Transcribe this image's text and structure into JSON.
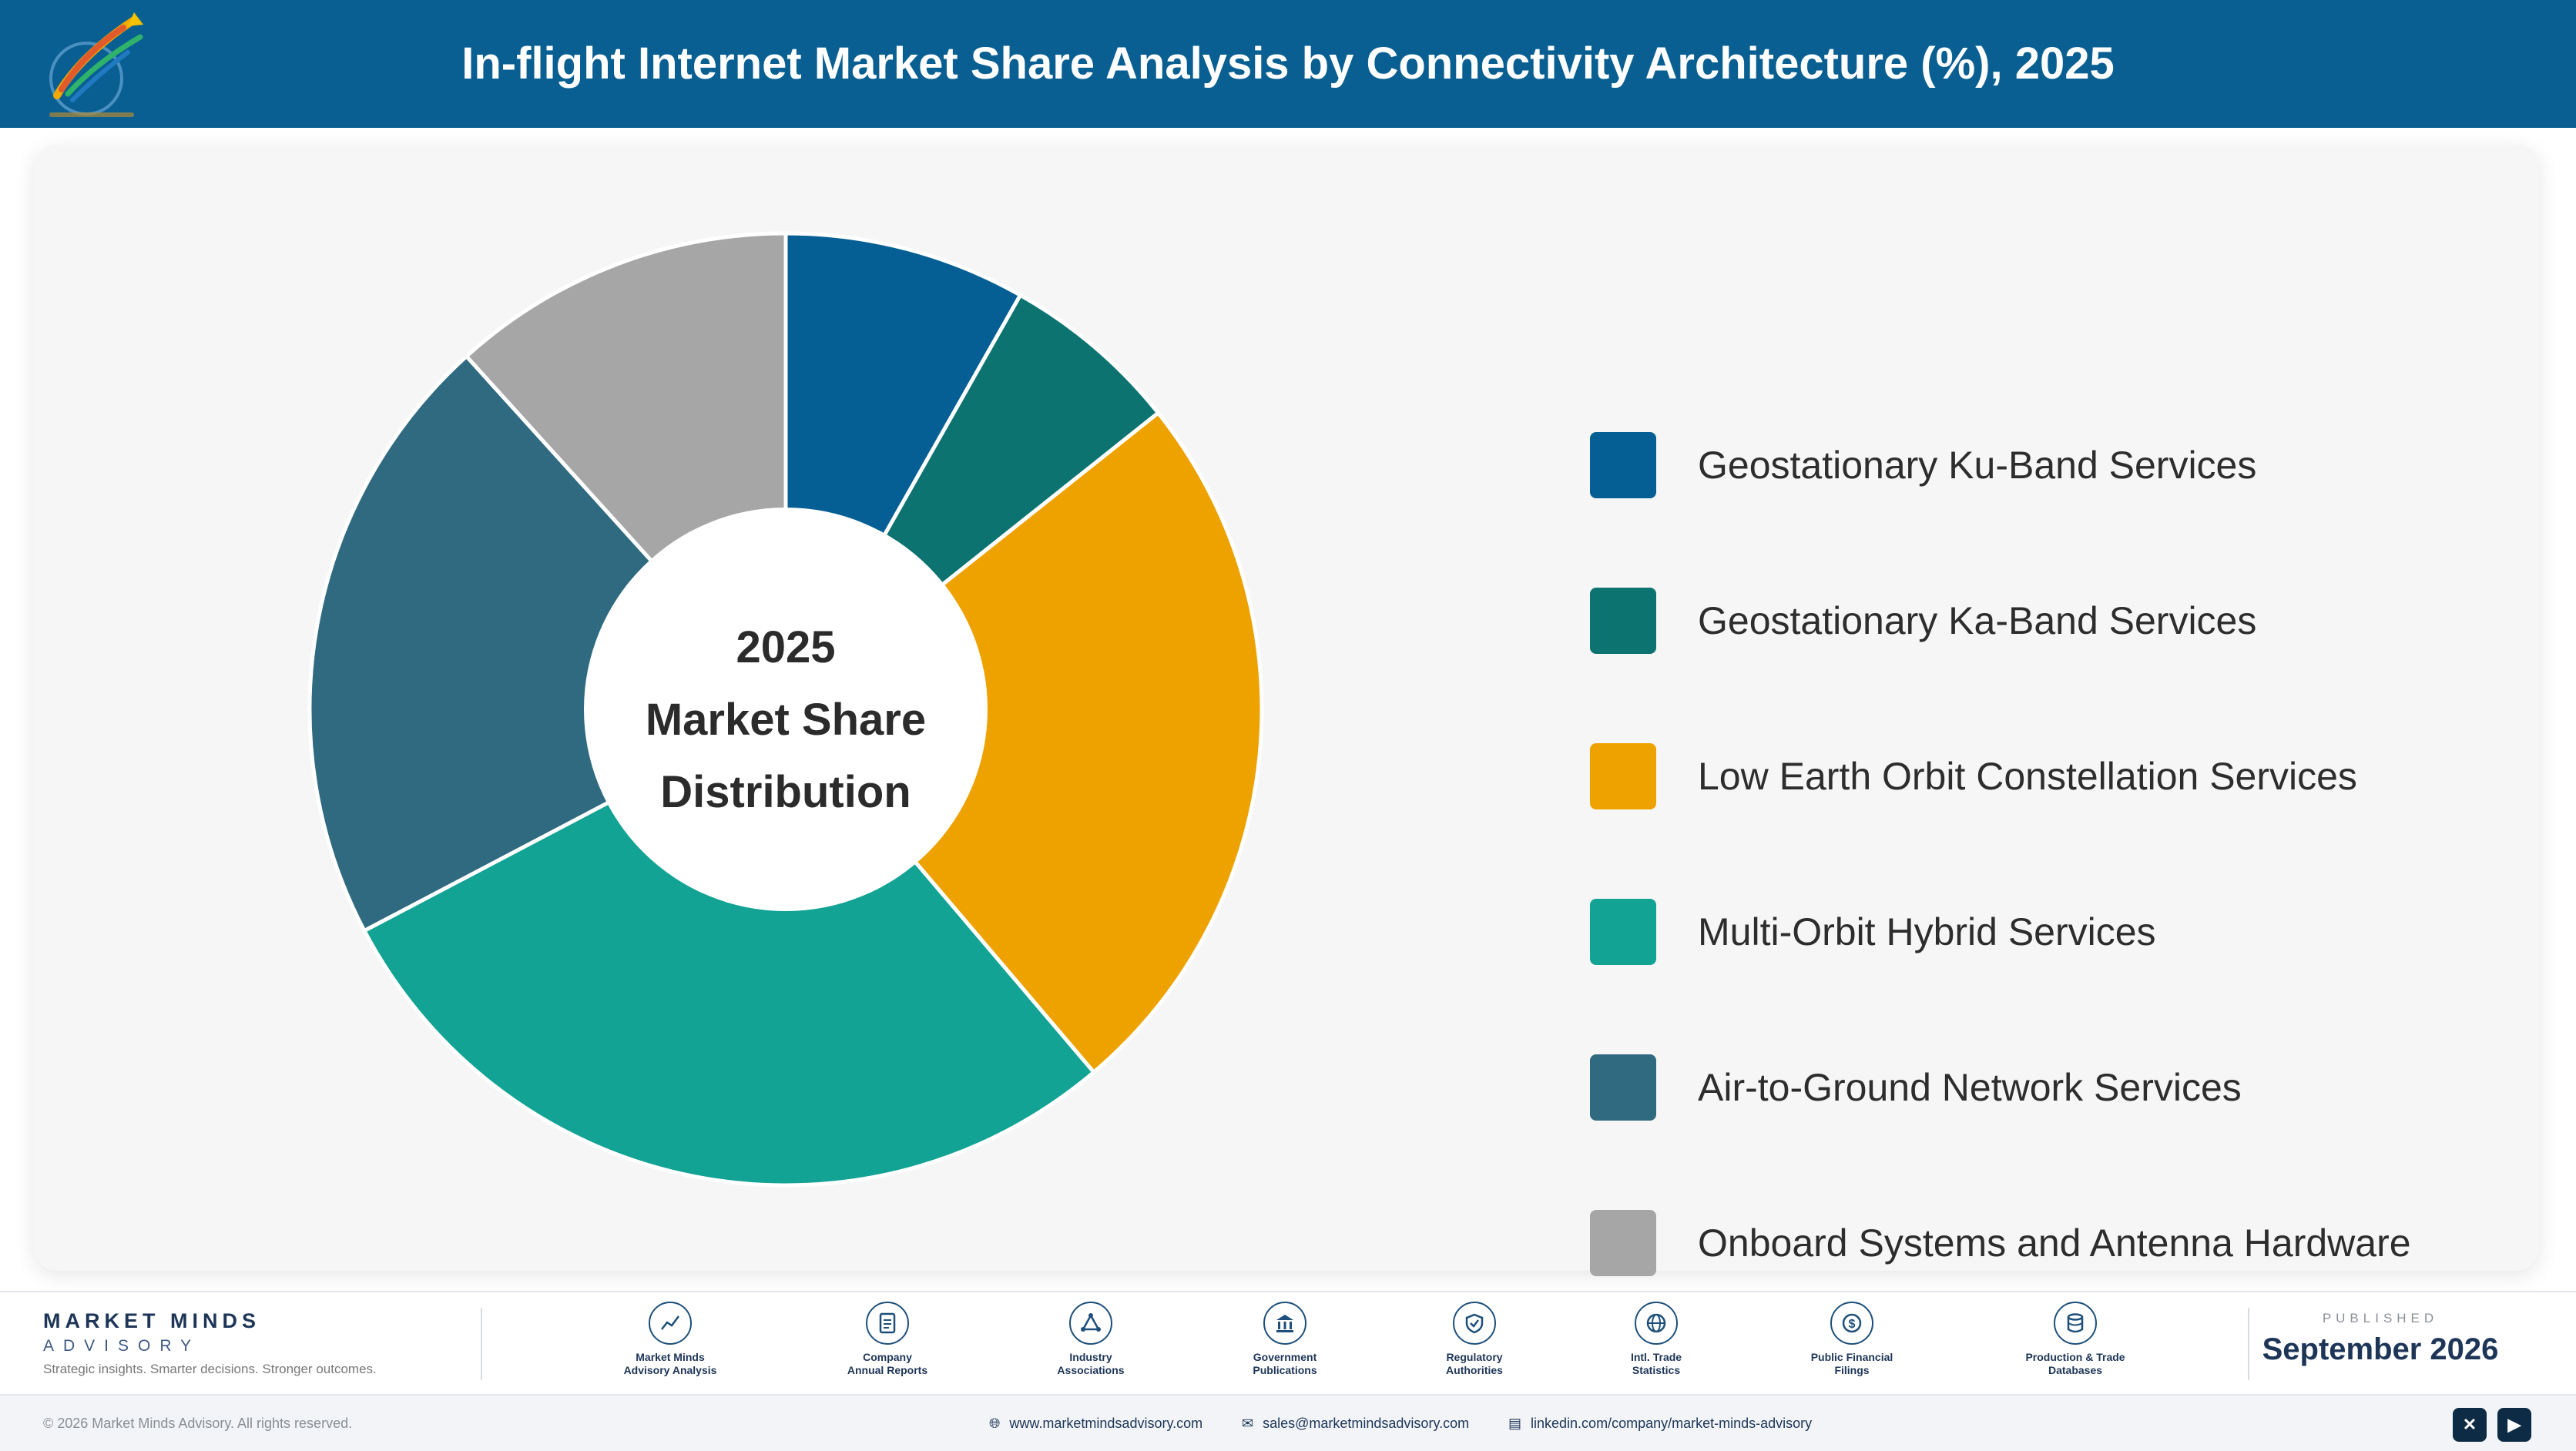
{
  "header": {
    "title": "In-flight Internet Market Share Analysis by Connectivity Architecture (%), 2025",
    "logo_icon": "market-minds-logo"
  },
  "chart_data": {
    "type": "pie",
    "title": "In-flight Internet Market Share Analysis by Connectivity Architecture (%), 2025",
    "center_label": [
      "2025",
      "Market Share",
      "Distribution"
    ],
    "legend_position": "right",
    "donut": true,
    "slices": [
      {
        "label": "Geostationary Ku-Band Services",
        "value": 8.2,
        "color": "#065f94"
      },
      {
        "label": "Geostationary Ka-Band Services",
        "value": 6.1,
        "color": "#0c7370"
      },
      {
        "label": "Low Earth Orbit Constellation Services",
        "value": 24.5,
        "color": "#eea200"
      },
      {
        "label": "Multi-Orbit Hybrid Services",
        "value": 28.5,
        "color": "#12a394"
      },
      {
        "label": "Air-to-Ground Network Services",
        "value": 21.0,
        "color": "#2f6a80"
      },
      {
        "label": "Onboard Systems and Antenna Hardware",
        "value": 11.7,
        "color": "#a6a6a6"
      }
    ]
  },
  "footer": {
    "brand_name": "MARKET MINDS",
    "brand_sub": "ADVISORY",
    "brand_tagline": "Strategic insights. Smarter decisions. Stronger outcomes.",
    "sources": [
      {
        "line1": "Market Minds",
        "line2": "Advisory Analysis",
        "icon": "chart-line-icon"
      },
      {
        "line1": "Company",
        "line2": "Annual Reports",
        "icon": "document-icon"
      },
      {
        "line1": "Industry",
        "line2": "Associations",
        "icon": "network-icon"
      },
      {
        "line1": "Government",
        "line2": "Publications",
        "icon": "government-building-icon"
      },
      {
        "line1": "Regulatory",
        "line2": "Authorities",
        "icon": "shield-icon"
      },
      {
        "line1": "Intl. Trade",
        "line2": "Statistics",
        "icon": "globe-icon"
      },
      {
        "line1": "Public Financial",
        "line2": "Filings",
        "icon": "dollar-icon"
      },
      {
        "line1": "Production & Trade",
        "line2": "Databases",
        "icon": "database-icon"
      }
    ],
    "published_label": "PUBLISHED",
    "published_date": "September 2026",
    "copyright": "© 2026 Market Minds Advisory. All rights reserved.",
    "website": "www.marketmindsadvisory.com",
    "email": "sales@marketmindsadvisory.com",
    "linkedin": "linkedin.com/company/market-minds-advisory"
  }
}
